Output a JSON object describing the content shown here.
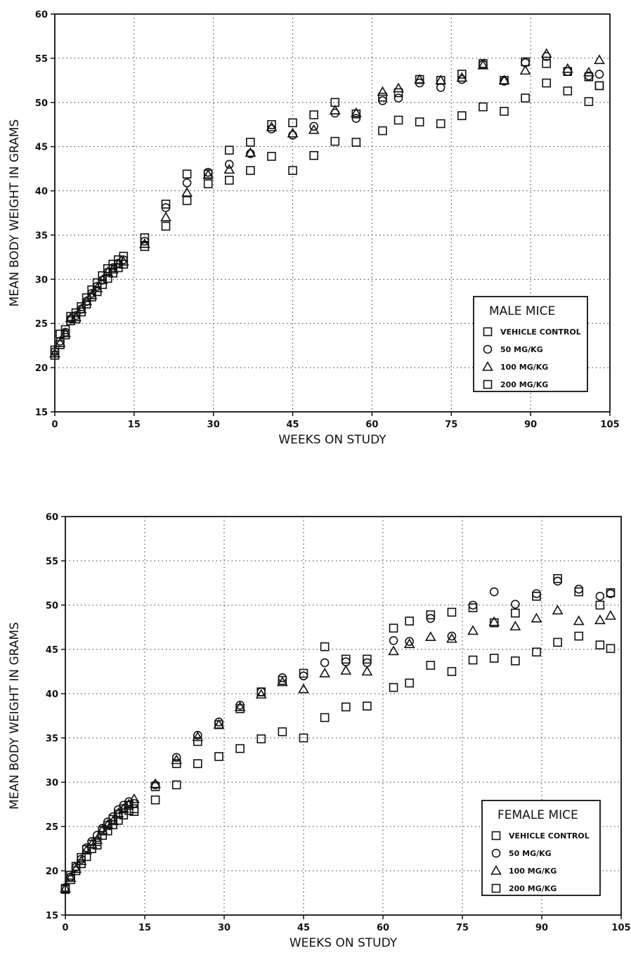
{
  "chart_data": [
    {
      "id": "male",
      "type": "scatter",
      "title": "",
      "xlabel": "WEEKS ON STUDY",
      "ylabel": "MEAN BODY WEIGHT IN GRAMS",
      "xlim": [
        0,
        105
      ],
      "ylim": [
        15,
        60
      ],
      "xticks": [
        0,
        15,
        30,
        45,
        60,
        75,
        90,
        105
      ],
      "yticks": [
        15,
        20,
        25,
        30,
        35,
        40,
        45,
        50,
        55,
        60
      ],
      "grid": true,
      "legend": {
        "title": "MALE MICE",
        "placement": "lower-right",
        "entries": [
          {
            "label": "VEHICLE CONTROL",
            "marker": "square"
          },
          {
            "label": "50 MG/KG",
            "marker": "circle"
          },
          {
            "label": "100 MG/KG",
            "marker": "triangle"
          },
          {
            "label": "200 MG/KG",
            "marker": "square"
          }
        ]
      },
      "series": [
        {
          "name": "VEHICLE CONTROL",
          "marker": "square",
          "x": [
            0,
            1,
            2,
            3,
            4,
            5,
            6,
            7,
            8,
            9,
            10,
            11,
            12,
            13,
            17,
            21,
            25,
            29,
            33,
            37,
            41,
            45,
            49,
            53,
            57,
            62,
            65,
            69,
            73,
            77,
            81,
            85,
            89,
            93,
            97,
            101,
            103
          ],
          "y": [
            22.0,
            23.8,
            24.3,
            25.8,
            26.2,
            26.9,
            27.9,
            28.8,
            29.6,
            30.4,
            31.2,
            31.7,
            32.2,
            32.6,
            34.7,
            38.5,
            41.9,
            41.9,
            44.6,
            45.5,
            47.5,
            47.7,
            48.6,
            50.0,
            48.7,
            50.6,
            51.1,
            52.6,
            52.5,
            53.2,
            54.4,
            52.5,
            54.6,
            54.4,
            53.5,
            52.9,
            51.9
          ]
        },
        {
          "name": "50 MG/KG",
          "marker": "circle",
          "x": [
            0,
            1,
            2,
            3,
            4,
            5,
            6,
            7,
            8,
            9,
            10,
            11,
            12,
            13,
            17,
            21,
            25,
            29,
            33,
            37,
            41,
            45,
            49,
            53,
            57,
            62,
            65,
            69,
            73,
            77,
            81,
            85,
            89,
            93,
            97,
            101,
            103
          ],
          "y": [
            21.8,
            23.0,
            24.0,
            25.5,
            25.9,
            26.6,
            27.5,
            28.4,
            29.2,
            29.9,
            30.8,
            31.3,
            31.8,
            32.2,
            34.3,
            38.1,
            40.9,
            42.1,
            43.0,
            44.2,
            47.0,
            46.3,
            47.3,
            48.8,
            48.2,
            50.2,
            50.5,
            52.2,
            51.7,
            52.6,
            54.3,
            52.4,
            54.5,
            55.2,
            53.5,
            53.0,
            53.2
          ]
        },
        {
          "name": "100 MG/KG",
          "marker": "triangle",
          "x": [
            0,
            1,
            2,
            3,
            4,
            5,
            6,
            7,
            8,
            9,
            10,
            11,
            12,
            13,
            17,
            21,
            25,
            29,
            33,
            37,
            41,
            45,
            49,
            53,
            57,
            62,
            65,
            69,
            73,
            77,
            81,
            85,
            89,
            93,
            97,
            101,
            103
          ],
          "y": [
            21.6,
            22.8,
            23.9,
            25.6,
            25.7,
            26.6,
            27.5,
            28.2,
            29.0,
            29.9,
            30.8,
            31.1,
            31.7,
            32.0,
            34.0,
            37.0,
            39.8,
            41.8,
            42.4,
            44.3,
            47.2,
            46.5,
            46.9,
            49.1,
            48.8,
            51.2,
            51.6,
            52.6,
            52.5,
            52.8,
            54.2,
            52.5,
            53.6,
            55.5,
            53.8,
            53.4,
            54.8
          ]
        },
        {
          "name": "200 MG/KG",
          "marker": "square",
          "x": [
            0,
            1,
            2,
            3,
            4,
            5,
            6,
            7,
            8,
            9,
            10,
            11,
            12,
            13,
            17,
            21,
            25,
            29,
            33,
            37,
            41,
            45,
            49,
            53,
            57,
            62,
            65,
            69,
            73,
            77,
            81,
            85,
            89,
            93,
            97,
            101,
            103
          ],
          "y": [
            21.4,
            22.6,
            23.7,
            25.3,
            25.5,
            26.3,
            27.2,
            28.0,
            28.6,
            29.4,
            30.1,
            30.7,
            31.3,
            31.7,
            33.7,
            36.0,
            38.9,
            40.8,
            41.2,
            42.3,
            43.9,
            42.3,
            44.0,
            45.6,
            45.5,
            46.8,
            48.0,
            47.8,
            47.6,
            48.5,
            49.5,
            49.0,
            50.5,
            52.2,
            51.3,
            50.1,
            51.9
          ]
        }
      ]
    },
    {
      "id": "female",
      "type": "scatter",
      "title": "",
      "xlabel": "WEEKS ON STUDY",
      "ylabel": "MEAN BODY WEIGHT IN GRAMS",
      "xlim": [
        0,
        105
      ],
      "ylim": [
        15,
        60
      ],
      "xticks": [
        0,
        15,
        30,
        45,
        60,
        75,
        90,
        105
      ],
      "yticks": [
        15,
        20,
        25,
        30,
        35,
        40,
        45,
        50,
        55,
        60
      ],
      "grid": true,
      "legend": {
        "title": "FEMALE MICE",
        "placement": "lower-right",
        "entries": [
          {
            "label": "VEHICLE CONTROL",
            "marker": "square"
          },
          {
            "label": "50 MG/KG",
            "marker": "circle"
          },
          {
            "label": "100 MG/KG",
            "marker": "triangle"
          },
          {
            "label": "200 MG/KG",
            "marker": "square"
          }
        ]
      },
      "series": [
        {
          "name": "VEHICLE CONTROL",
          "marker": "square",
          "x": [
            0,
            1,
            2,
            3,
            4,
            5,
            6,
            7,
            8,
            9,
            10,
            11,
            12,
            13,
            17,
            21,
            25,
            29,
            33,
            37,
            41,
            45,
            49,
            53,
            57,
            62,
            65,
            69,
            73,
            77,
            81,
            85,
            89,
            93,
            97,
            101,
            103
          ],
          "y": [
            18.0,
            19.5,
            20.5,
            21.5,
            22.4,
            23.0,
            23.3,
            24.5,
            25.1,
            25.8,
            26.4,
            27.0,
            27.4,
            27.0,
            29.5,
            32.1,
            34.6,
            36.5,
            38.3,
            40.2,
            41.5,
            42.3,
            45.3,
            43.9,
            43.9,
            47.4,
            48.2,
            48.9,
            49.2,
            49.7,
            48.0,
            49.1,
            51.0,
            53.0,
            51.5,
            50.0,
            51.4
          ]
        },
        {
          "name": "50 MG/KG",
          "marker": "circle",
          "x": [
            0,
            1,
            2,
            3,
            4,
            5,
            6,
            7,
            8,
            9,
            10,
            11,
            12,
            13,
            17,
            21,
            25,
            29,
            33,
            37,
            41,
            45,
            49,
            53,
            57,
            62,
            65,
            69,
            73,
            77,
            81,
            85,
            89,
            93,
            97,
            101,
            103
          ],
          "y": [
            18.1,
            19.3,
            20.4,
            21.3,
            22.6,
            23.3,
            24.0,
            24.8,
            25.5,
            26.1,
            26.9,
            27.4,
            27.8,
            27.6,
            29.7,
            32.8,
            35.3,
            36.8,
            38.7,
            40.2,
            41.8,
            42.0,
            43.5,
            43.6,
            43.5,
            46.0,
            45.9,
            48.5,
            46.5,
            50.0,
            51.5,
            50.1,
            51.3,
            52.7,
            51.8,
            51.0,
            51.3
          ]
        },
        {
          "name": "100 MG/KG",
          "marker": "triangle",
          "x": [
            0,
            1,
            2,
            3,
            4,
            5,
            6,
            7,
            8,
            9,
            10,
            11,
            12,
            13,
            17,
            21,
            25,
            29,
            33,
            37,
            41,
            45,
            49,
            53,
            57,
            62,
            65,
            69,
            73,
            77,
            81,
            85,
            89,
            93,
            97,
            101,
            103
          ],
          "y": [
            18.0,
            19.2,
            20.2,
            21.1,
            22.3,
            23.0,
            23.5,
            24.6,
            25.2,
            25.6,
            26.5,
            27.0,
            27.5,
            28.1,
            29.8,
            32.5,
            35.1,
            36.5,
            38.5,
            39.9,
            41.3,
            40.5,
            42.3,
            42.6,
            42.5,
            44.8,
            45.6,
            46.4,
            46.2,
            47.1,
            48.1,
            47.6,
            48.5,
            49.4,
            48.2,
            48.3,
            48.8
          ]
        },
        {
          "name": "200 MG/KG",
          "marker": "square",
          "x": [
            0,
            1,
            2,
            3,
            4,
            5,
            6,
            7,
            8,
            9,
            10,
            11,
            12,
            13,
            17,
            21,
            25,
            29,
            33,
            37,
            41,
            45,
            49,
            53,
            57,
            62,
            65,
            69,
            73,
            77,
            81,
            85,
            89,
            93,
            97,
            101,
            103
          ],
          "y": [
            17.9,
            19.0,
            20.0,
            20.8,
            21.6,
            22.5,
            22.9,
            24.0,
            24.5,
            25.2,
            25.7,
            26.3,
            26.8,
            26.7,
            28.0,
            29.7,
            32.1,
            32.9,
            33.8,
            34.9,
            35.7,
            35.0,
            37.3,
            38.5,
            38.6,
            40.7,
            41.2,
            43.2,
            42.5,
            43.8,
            44.0,
            43.7,
            44.7,
            45.8,
            46.5,
            45.5,
            45.1
          ]
        }
      ]
    }
  ]
}
